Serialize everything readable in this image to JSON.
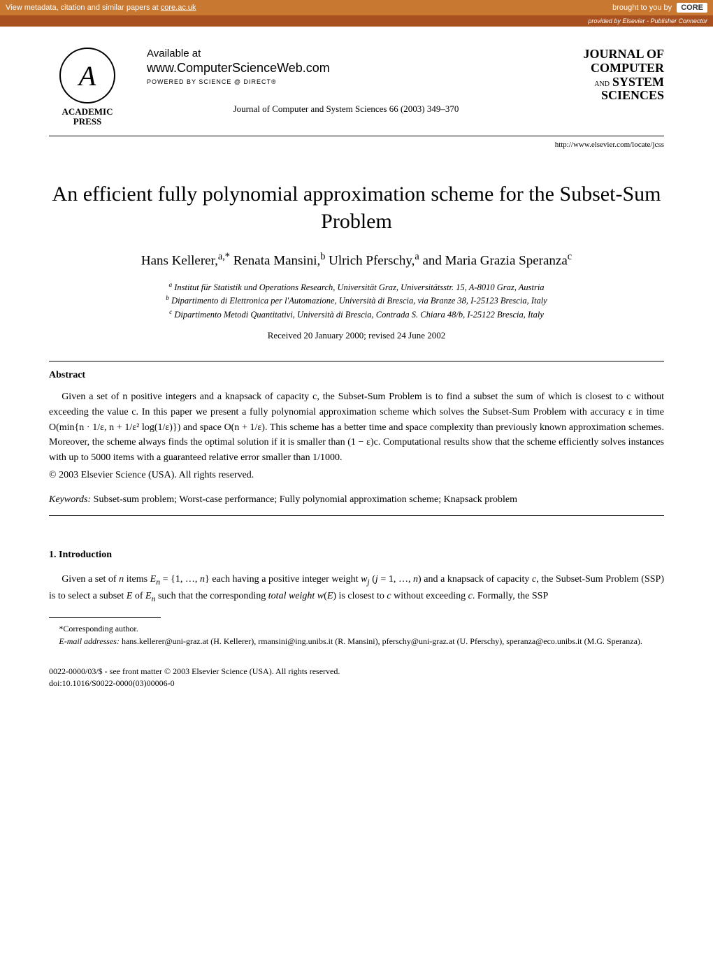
{
  "banner": {
    "left_text": "View metadata, citation and similar papers at ",
    "core_link": "core.ac.uk",
    "right_text": "brought to you by",
    "core_badge": "CORE",
    "provided_by": "provided by Elsevier - Publisher Connector"
  },
  "header": {
    "ap_glyph": "A",
    "academic": "ACADEMIC",
    "press": "PRESS",
    "available": "Available at",
    "csw": "www.ComputerScienceWeb.com",
    "powered": "POWERED BY SCIENCE @ DIRECT®",
    "journal_ref": "Journal of Computer and System Sciences 66 (2003) 349–370",
    "j_of": "JOURNAL OF",
    "j_computer": "COMPUTER",
    "j_and": "AND",
    "j_system": "SYSTEM",
    "j_sciences": "SCIENCES",
    "url": "http://www.elsevier.com/locate/jcss"
  },
  "title": "An efficient fully polynomial approximation scheme for the Subset-Sum Problem",
  "authors_html": "Hans Kellerer,<sup>a,*</sup> Renata Mansini,<sup>b</sup> Ulrich Pferschy,<sup>a</sup> and Maria Grazia Speranza<sup>c</sup>",
  "affiliations": {
    "a": "Institut für Statistik und Operations Research, Universität Graz, Universitätsstr. 15, A-8010 Graz, Austria",
    "b": "Dipartimento di Elettronica per l'Automazione, Università di Brescia, via Branze 38, I-25123 Brescia, Italy",
    "c": "Dipartimento Metodi Quantitativi, Università di Brescia, Contrada S. Chiara 48/b, I-25122 Brescia, Italy"
  },
  "received": "Received 20 January 2000; revised 24 June 2002",
  "abstract": {
    "heading": "Abstract",
    "body": "Given a set of n positive integers and a knapsack of capacity c, the Subset-Sum Problem is to find a subset the sum of which is closest to c without exceeding the value c. In this paper we present a fully polynomial approximation scheme which solves the Subset-Sum Problem with accuracy ε in time O(min{n · 1/ε, n + 1/ε² log(1/ε)}) and space O(n + 1/ε). This scheme has a better time and space complexity than previously known approximation schemes. Moreover, the scheme always finds the optimal solution if it is smaller than (1 − ε)c. Computational results show that the scheme efficiently solves instances with up to 5000 items with a guaranteed relative error smaller than 1/1000.",
    "copyright": "© 2003 Elsevier Science (USA). All rights reserved."
  },
  "keywords": {
    "label": "Keywords:",
    "text": " Subset-sum problem; Worst-case performance; Fully polynomial approximation scheme; Knapsack problem"
  },
  "intro": {
    "heading": "1. Introduction",
    "body_html": "Given a set of <span class='math'>n</span> items <span class='math'>E<sub>n</sub></span> = {1, …, <span class='math'>n</span>} each having a positive integer weight <span class='math'>w<sub>j</sub></span> (<span class='math'>j</span> = 1, …, <span class='math'>n</span>) and a knapsack of capacity <span class='math'>c</span>, the Subset-Sum Problem (SSP) is to select a subset <span class='math'>E</span> of <span class='math'>E<sub>n</sub></span> such that the corresponding <i>total weight w</i>(<span class='math'>E</span>) is closest to <span class='math'>c</span> without exceeding <span class='math'>c</span>. Formally, the SSP"
  },
  "footnotes": {
    "corresponding": "*Corresponding author.",
    "emails_label": "E-mail addresses:",
    "emails": " hans.kellerer@uni-graz.at (H. Kellerer), rmansini@ing.unibs.it (R. Mansini), pferschy@uni-graz.at (U. Pferschy), speranza@eco.unibs.it (M.G. Speranza)."
  },
  "bottom": {
    "line1": "0022-0000/03/$ - see front matter © 2003 Elsevier Science (USA). All rights reserved.",
    "line2": "doi:10.1016/S0022-0000(03)00006-0"
  }
}
